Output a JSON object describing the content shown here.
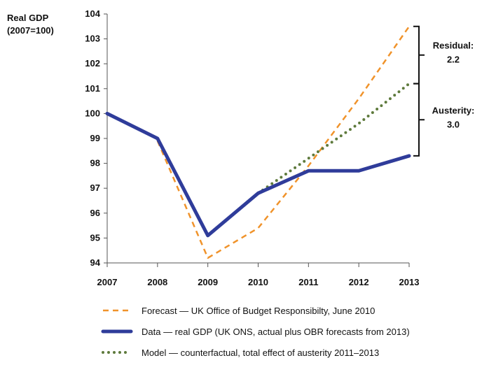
{
  "chart_data": {
    "type": "line",
    "ylabel_lines": [
      "Real GDP",
      "(2007=100)"
    ],
    "x": [
      2007,
      2008,
      2009,
      2010,
      2011,
      2012,
      2013
    ],
    "x_ticks": [
      "2007",
      "2008",
      "2009",
      "2010",
      "2011",
      "2012",
      "2013"
    ],
    "ylim": [
      94,
      104
    ],
    "y_ticks": [
      "94",
      "95",
      "96",
      "97",
      "98",
      "99",
      "100",
      "101",
      "102",
      "103",
      "104"
    ],
    "series": [
      {
        "name": "Forecast",
        "legend": "Forecast — UK Office of Budget Responsibilty, June 2010",
        "style": "dashed",
        "color": "#F0932B",
        "x": [
          2008,
          2009,
          2010,
          2011,
          2012,
          2013
        ],
        "values": [
          98.9,
          94.2,
          95.4,
          97.9,
          100.6,
          103.5
        ]
      },
      {
        "name": "Data",
        "legend": "Data — real GDP (UK ONS, actual plus OBR forecasts from 2013)",
        "style": "solid",
        "color": "#2F3C9A",
        "x": [
          2007,
          2008,
          2009,
          2010,
          2011,
          2012,
          2013
        ],
        "values": [
          100.0,
          99.0,
          95.1,
          96.8,
          97.7,
          97.7,
          98.3
        ]
      },
      {
        "name": "Model",
        "legend": "Model — counterfactual, total effect of austerity 2011–2013",
        "style": "dotted",
        "color": "#5E7A3C",
        "x": [
          2010,
          2011,
          2012,
          2013
        ],
        "values": [
          96.8,
          98.2,
          99.6,
          101.2
        ]
      }
    ],
    "annotations": [
      {
        "label_lines": [
          "Residual:",
          "2.2"
        ],
        "from": 101.2,
        "to": 103.5
      },
      {
        "label_lines": [
          "Austerity:",
          "3.0"
        ],
        "from": 98.3,
        "to": 101.2
      }
    ]
  }
}
